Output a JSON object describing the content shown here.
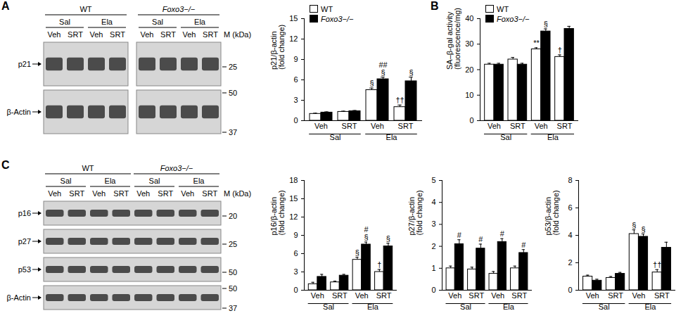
{
  "panels": [
    "A",
    "B",
    "C"
  ],
  "blots": [
    {
      "groups": [
        "WT",
        "Foxo3−/−"
      ],
      "conditions": [
        "Sal",
        "Ela"
      ],
      "treatments": [
        "Veh",
        "SRT"
      ],
      "marker_title": "M (kDa)",
      "rows": [
        {
          "label": "p21",
          "markers": [
            25
          ]
        },
        {
          "label": "β-Actin",
          "markers": [
            50,
            37
          ]
        }
      ]
    },
    {
      "groups": [
        "WT",
        "Foxo3−/−"
      ],
      "conditions": [
        "Sal",
        "Ela"
      ],
      "treatments": [
        "Veh",
        "SRT"
      ],
      "marker_title": "M (kDa)",
      "rows": [
        {
          "label": "p16",
          "markers": [
            20
          ]
        },
        {
          "label": "p27",
          "markers": [
            25
          ]
        },
        {
          "label": "p53",
          "markers": [
            50
          ]
        },
        {
          "label": "β-Actin",
          "markers": [
            50,
            37
          ]
        }
      ]
    }
  ],
  "chart_data": [
    {
      "type": "bar",
      "ylabel": "p21/β-actin\n(fold change)",
      "categories": [
        "Veh",
        "SRT",
        "Veh",
        "SRT"
      ],
      "groups": [
        "Sal",
        "Sal",
        "Ela",
        "Ela"
      ],
      "ylim": [
        0,
        15
      ],
      "yticks": [
        0,
        3,
        6,
        9,
        12,
        15
      ],
      "legend": "top-left",
      "series": [
        {
          "name": "WT",
          "color": "#ffffff",
          "values": [
            1.0,
            1.3,
            4.5,
            2.0
          ],
          "errors": [
            0.1,
            0.1,
            0.3,
            0.3
          ],
          "annotations": [
            null,
            null,
            "§",
            "††"
          ]
        },
        {
          "name": "Foxo3−/−",
          "color": "#000000",
          "values": [
            1.2,
            1.4,
            6.1,
            5.8
          ],
          "errors": [
            0.1,
            0.1,
            0.3,
            0.6
          ],
          "annotations": [
            null,
            null,
            "##\n§",
            "§"
          ]
        }
      ]
    },
    {
      "type": "bar",
      "ylabel": "SA–β-gal activity\n(fluorescence/mg)",
      "categories": [
        "Veh",
        "SRT",
        "Veh",
        "SRT"
      ],
      "groups": [
        "Sal",
        "Sal",
        "Ela",
        "Ela"
      ],
      "ylim": [
        0,
        40
      ],
      "yticks": [
        0,
        10,
        20,
        30,
        40
      ],
      "legend": "top-left",
      "series": [
        {
          "name": "WT",
          "color": "#ffffff",
          "values": [
            22,
            24,
            28,
            25
          ],
          "errors": [
            0.5,
            0.8,
            0.6,
            0.8
          ],
          "annotations": [
            null,
            null,
            "**",
            "†"
          ]
        },
        {
          "name": "Foxo3−/−",
          "color": "#000000",
          "values": [
            22,
            22,
            35,
            36
          ],
          "errors": [
            0.5,
            0.5,
            1,
            1
          ],
          "annotations": [
            null,
            null,
            "§",
            null
          ]
        }
      ]
    },
    {
      "type": "bar",
      "ylabel": "p16/β-actin\n(fold change)",
      "categories": [
        "Veh",
        "SRT",
        "Veh",
        "SRT"
      ],
      "groups": [
        "Sal",
        "Sal",
        "Ela",
        "Ela"
      ],
      "ylim": [
        0,
        18
      ],
      "yticks": [
        0,
        3,
        6,
        9,
        12,
        15,
        18
      ],
      "series": [
        {
          "name": "WT",
          "color": "#ffffff",
          "values": [
            1.0,
            1.3,
            5.0,
            3.0
          ],
          "errors": [
            0.3,
            0.2,
            0.4,
            0.4
          ],
          "annotations": [
            null,
            null,
            "§",
            "†"
          ]
        },
        {
          "name": "Foxo3−/−",
          "color": "#000000",
          "values": [
            2.2,
            2.4,
            7.5,
            7.2
          ],
          "errors": [
            0.4,
            0.2,
            0.4,
            0.5
          ],
          "annotations": [
            null,
            null,
            "#\n§",
            "§"
          ]
        }
      ]
    },
    {
      "type": "bar",
      "ylabel": "p27/β-actin\n(fold change)",
      "categories": [
        "Veh",
        "SRT",
        "Veh",
        "SRT"
      ],
      "groups": [
        "Sal",
        "Sal",
        "Ela",
        "Ela"
      ],
      "ylim": [
        0,
        5
      ],
      "yticks": [
        0,
        1,
        2,
        3,
        4,
        5
      ],
      "series": [
        {
          "name": "WT",
          "color": "#ffffff",
          "values": [
            1.0,
            0.95,
            0.75,
            1.0
          ],
          "errors": [
            0.1,
            0.1,
            0.1,
            0.1
          ],
          "annotations": [
            null,
            null,
            null,
            null
          ]
        },
        {
          "name": "Foxo3−/−",
          "color": "#000000",
          "values": [
            2.1,
            1.9,
            2.2,
            1.7
          ],
          "errors": [
            0.2,
            0.2,
            0.15,
            0.15
          ],
          "annotations": [
            "#",
            "#",
            "#",
            "#"
          ]
        }
      ]
    },
    {
      "type": "bar",
      "ylabel": "p53/β-actin\n(fold change)",
      "categories": [
        "Veh",
        "SRT",
        "Veh",
        "SRT"
      ],
      "groups": [
        "Sal",
        "Sal",
        "Ela",
        "Ela"
      ],
      "ylim": [
        0,
        8
      ],
      "yticks": [
        0,
        2,
        4,
        6,
        8
      ],
      "series": [
        {
          "name": "WT",
          "color": "#ffffff",
          "values": [
            1.0,
            0.9,
            4.1,
            1.3
          ],
          "errors": [
            0.1,
            0.1,
            0.3,
            0.2
          ],
          "annotations": [
            null,
            null,
            "§",
            "††"
          ]
        },
        {
          "name": "Foxo3−/−",
          "color": "#000000",
          "values": [
            0.7,
            1.2,
            3.9,
            3.1
          ],
          "errors": [
            0.1,
            0.1,
            0.2,
            0.4
          ],
          "annotations": [
            null,
            null,
            "§",
            null
          ]
        }
      ]
    }
  ]
}
